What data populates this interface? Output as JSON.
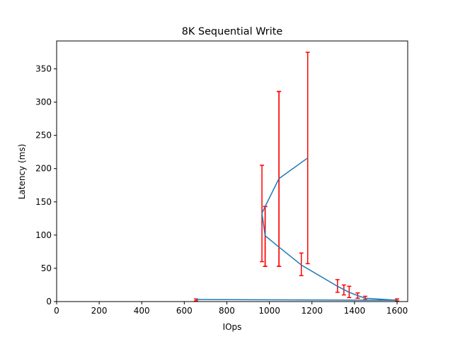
{
  "chart_data": {
    "type": "line",
    "title": "8K  Sequential Write",
    "xlabel": "IOps",
    "ylabel": "Latency (ms)",
    "xlim": [
      0,
      1650
    ],
    "ylim": [
      0,
      392
    ],
    "xticks": [
      0,
      200,
      400,
      600,
      800,
      1000,
      1200,
      1400,
      1600
    ],
    "yticks": [
      0,
      50,
      100,
      150,
      200,
      250,
      300,
      350
    ],
    "grid": false,
    "colors": {
      "line": "#1f77b4",
      "errorbar": "#ff0000"
    },
    "series": [
      {
        "points": [
          {
            "x": 655,
            "y": 3,
            "yerr_low": 1,
            "yerr_high": 4
          },
          {
            "x": 1600,
            "y": 2,
            "yerr_low": 1,
            "yerr_high": 4
          },
          {
            "x": 1450,
            "y": 5,
            "yerr_low": 3,
            "yerr_high": 8
          },
          {
            "x": 1415,
            "y": 9,
            "yerr_low": 5,
            "yerr_high": 13
          },
          {
            "x": 1375,
            "y": 14,
            "yerr_low": 6,
            "yerr_high": 23
          },
          {
            "x": 1350,
            "y": 18,
            "yerr_low": 10,
            "yerr_high": 25
          },
          {
            "x": 1320,
            "y": 23,
            "yerr_low": 14,
            "yerr_high": 33
          },
          {
            "x": 1150,
            "y": 55,
            "yerr_low": 39,
            "yerr_high": 73
          },
          {
            "x": 1045,
            "y": 82,
            "yerr_low": 53,
            "yerr_high": 316
          },
          {
            "x": 980,
            "y": 99,
            "yerr_low": 53,
            "yerr_high": 143
          },
          {
            "x": 965,
            "y": 133,
            "yerr_low": 60,
            "yerr_high": 205
          },
          {
            "x": 980,
            "y": 143,
            "yerr_low": 53,
            "yerr_high": 143
          },
          {
            "x": 1045,
            "y": 185,
            "yerr_low": 53,
            "yerr_high": 316
          },
          {
            "x": 1180,
            "y": 216,
            "yerr_low": 57,
            "yerr_high": 375
          }
        ]
      }
    ]
  }
}
